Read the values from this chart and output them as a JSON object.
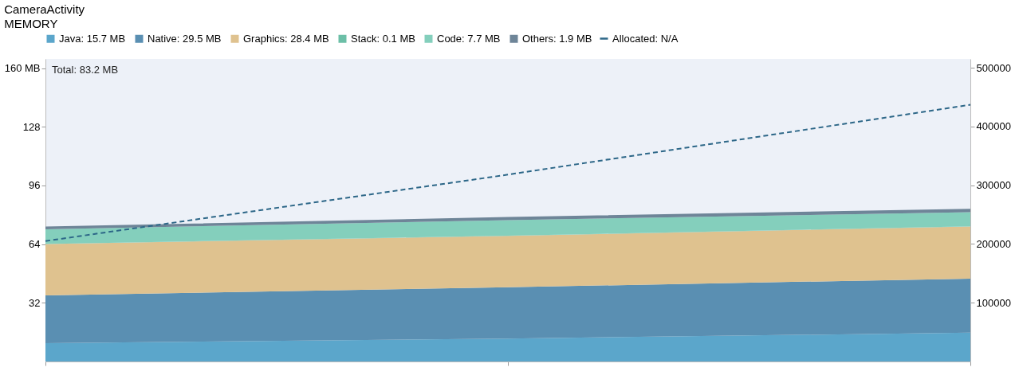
{
  "chart_data": {
    "type": "area",
    "title": "CameraActivity",
    "subtitle": "MEMORY",
    "stacked": true,
    "categories": [
      null,
      null,
      null
    ],
    "series": [
      {
        "name": "Java: 15.7 MB",
        "color": "#5ba6cb",
        "values": [
          10,
          12.5,
          15.7
        ]
      },
      {
        "name": "Native: 29.5 MB",
        "color": "#5a8fb2",
        "values": [
          26,
          28,
          29.5
        ]
      },
      {
        "name": "Graphics: 28.4 MB",
        "color": "#dfc28f",
        "values": [
          28,
          28,
          28.4
        ]
      },
      {
        "name": "Stack: 0.1 MB",
        "color": "#6cbfa7",
        "values": [
          0.1,
          0.1,
          0.1
        ]
      },
      {
        "name": "Code: 7.7 MB",
        "color": "#84cfbc",
        "values": [
          8,
          8.5,
          7.7
        ]
      },
      {
        "name": "Others: 1.9 MB",
        "color": "#6e8598",
        "values": [
          1.5,
          1.7,
          1.9
        ]
      },
      {
        "name": "Allocated: N/A",
        "type": "line",
        "axis": "y2",
        "color": "#2d6788",
        "line_style": "dashed",
        "values": [
          205000,
          318000,
          437000
        ]
      }
    ],
    "ylim": [
      0,
      165
    ],
    "yticks": [
      32,
      64,
      96,
      128,
      {
        "value": 160,
        "label": "160 MB"
      }
    ],
    "y2lim": [
      0,
      515000
    ],
    "y2ticks": [
      100000,
      200000,
      300000,
      400000,
      500000
    ],
    "annotations": [
      "Total: 83.2 MB"
    ],
    "grid": false,
    "legend": "top"
  }
}
